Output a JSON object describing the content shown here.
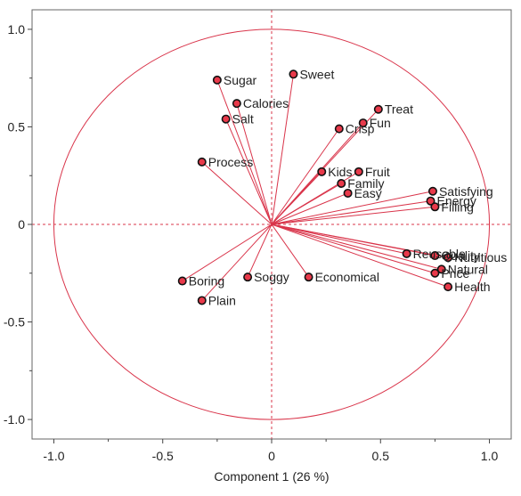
{
  "chart_data": {
    "type": "scatter",
    "subtype": "loading-plot",
    "title": "",
    "xlabel": "Component 1  (26 %)",
    "ylabel": "",
    "xlim": [
      -1.1,
      1.1
    ],
    "ylim": [
      -1.1,
      1.1
    ],
    "xticks": [
      -1.0,
      -0.5,
      0.0,
      0.5,
      1.0
    ],
    "yticks": [
      -1.0,
      -0.5,
      0.0,
      0.5,
      1.0
    ],
    "xtick_labels": [
      "-1.0",
      "-0.5",
      "0",
      "0.5",
      "1.0"
    ],
    "ytick_labels": [
      "-1.0",
      "-0.5",
      "0",
      "0.5",
      "1.0"
    ],
    "unit_circle": true,
    "origin_reference_lines": true,
    "colors": {
      "vector": "#d9344a",
      "marker_fill": "#e8394a",
      "marker_edge": "#111111",
      "circle": "#d9344a"
    },
    "points": [
      {
        "label": "Sugar",
        "x": -0.25,
        "y": 0.74
      },
      {
        "label": "Calories",
        "x": -0.16,
        "y": 0.62
      },
      {
        "label": "Salt",
        "x": -0.21,
        "y": 0.54
      },
      {
        "label": "Sweet",
        "x": 0.1,
        "y": 0.77
      },
      {
        "label": "Treat",
        "x": 0.49,
        "y": 0.59
      },
      {
        "label": "Fun",
        "x": 0.42,
        "y": 0.52
      },
      {
        "label": "Crisp",
        "x": 0.31,
        "y": 0.49
      },
      {
        "label": "Process",
        "x": -0.32,
        "y": 0.32
      },
      {
        "label": "Kids",
        "x": 0.23,
        "y": 0.27
      },
      {
        "label": "Fruit",
        "x": 0.4,
        "y": 0.27
      },
      {
        "label": "Family",
        "x": 0.32,
        "y": 0.21
      },
      {
        "label": "Easy",
        "x": 0.35,
        "y": 0.16
      },
      {
        "label": "Satisfying",
        "x": 0.74,
        "y": 0.17
      },
      {
        "label": "Energy",
        "x": 0.73,
        "y": 0.12
      },
      {
        "label": "Filling",
        "x": 0.75,
        "y": 0.09
      },
      {
        "label": "Reusable",
        "x": 0.62,
        "y": -0.15
      },
      {
        "label": "Quality",
        "x": 0.75,
        "y": -0.16
      },
      {
        "label": "Nutritious",
        "x": 0.81,
        "y": -0.17
      },
      {
        "label": "Natural",
        "x": 0.78,
        "y": -0.23
      },
      {
        "label": "Price",
        "x": 0.75,
        "y": -0.25
      },
      {
        "label": "Health",
        "x": 0.81,
        "y": -0.32
      },
      {
        "label": "Boring",
        "x": -0.41,
        "y": -0.29
      },
      {
        "label": "Soggy",
        "x": -0.11,
        "y": -0.27
      },
      {
        "label": "Economical",
        "x": 0.17,
        "y": -0.27
      },
      {
        "label": "Plain",
        "x": -0.32,
        "y": -0.39
      }
    ]
  }
}
